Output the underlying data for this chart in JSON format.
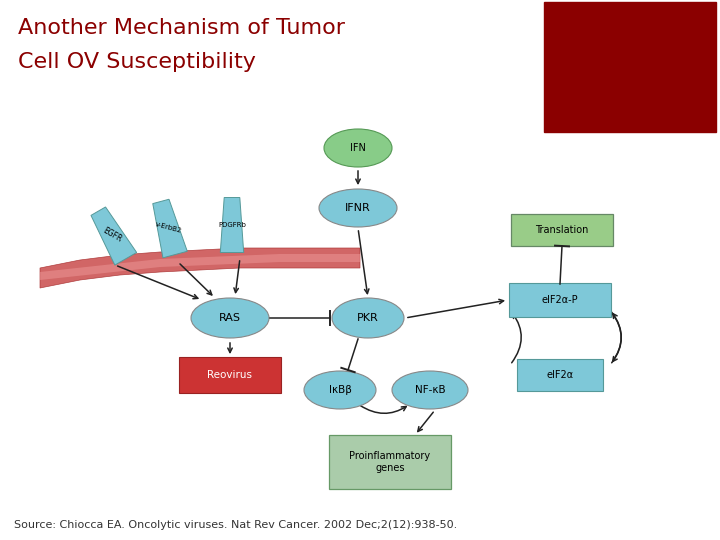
{
  "title_line1": "Another Mechanism of Tumor",
  "title_line2": "Cell OV Susceptibility",
  "title_color": "#8B0000",
  "title_fontsize": 16,
  "source_text": "Source: Chiocca EA. Oncolytic viruses. Nat Rev Cancer. 2002 Dec;2(12):938-50.",
  "source_fontsize": 8,
  "bg_color": "#ffffff",
  "dark_red_color": "#8B0000",
  "node_color_blue": "#7EC8D8",
  "node_color_blue_rect": "#7EC8D8",
  "node_color_green_ifn": "#88CC88",
  "node_color_red_reovirus": "#CC3333",
  "node_color_green_box": "#99CC88",
  "node_color_green_box_pro": "#AACCAA",
  "arrow_color": "#222222",
  "membrane_color": "#CC4444"
}
